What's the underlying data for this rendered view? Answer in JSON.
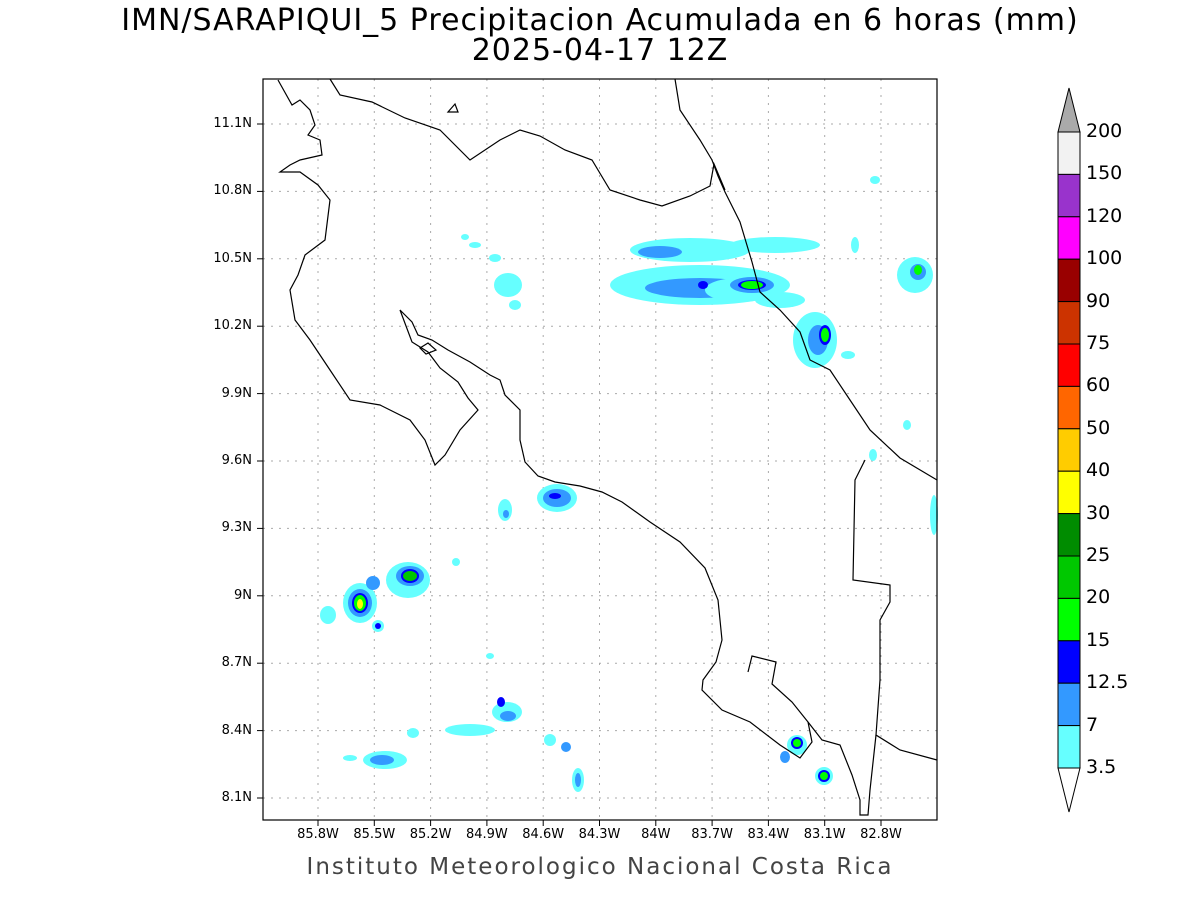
{
  "title": "IMN/SARAPIQUI_5 Precipitacion Acumulada en 6 horas (mm)",
  "subtitle": "2025-04-17 12Z",
  "footer": "Instituto Meteorologico Nacional Costa Rica",
  "map": {
    "lon_ticks": [
      "85.8W",
      "85.5W",
      "85.2W",
      "84.9W",
      "84.6W",
      "84.3W",
      "84W",
      "83.7W",
      "83.4W",
      "83.1W",
      "82.8W"
    ],
    "lat_ticks": [
      "11.1N",
      "10.8N",
      "10.5N",
      "10.2N",
      "9.9N",
      "9.6N",
      "9.3N",
      "9N",
      "8.7N",
      "8.4N",
      "8.1N"
    ]
  },
  "colorbar": {
    "labels": [
      "200",
      "150",
      "120",
      "100",
      "90",
      "75",
      "60",
      "50",
      "40",
      "30",
      "25",
      "20",
      "15",
      "12.5",
      "7",
      "3.5"
    ],
    "colors": [
      "#f2f2f2",
      "#9933cc",
      "#ff00ff",
      "#990000",
      "#cc3300",
      "#ff0000",
      "#ff6600",
      "#ffcc00",
      "#ffff00",
      "#008c00",
      "#00c800",
      "#00ff00",
      "#0000ff",
      "#3399ff",
      "#66ffff"
    ],
    "over_color": "#aaaaaa",
    "under_color": "#ffffff"
  }
}
